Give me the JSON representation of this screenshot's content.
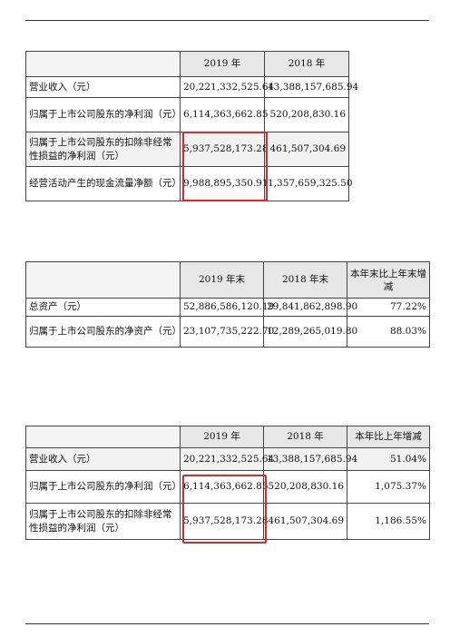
{
  "table1": {
    "headers": [
      "",
      "2019 年",
      "2018 年"
    ],
    "rows": [
      [
        "营业收入（元）",
        "20,221,332,525.64",
        "13,388,157,685.94"
      ],
      [
        "归属于上市公司股东的净利润（元）",
        "6,114,363,662.85",
        "520,208,830.16"
      ],
      [
        "归属于上市公司股东的扣除非经常性损益的净利润（元）",
        "5,937,528,173.28",
        "461,507,304.69"
      ],
      [
        "经营活动产生的现金流量净额（元）",
        "9,988,895,350.91",
        "1,357,659,325.50"
      ]
    ]
  },
  "table2": {
    "headers": [
      "",
      "2019 年末",
      "2018 年末",
      "本年末比上年末增减"
    ],
    "rows": [
      [
        "总资产（元）",
        "52,886,586,120.19",
        "29,841,862,898.90",
        "77.22%"
      ],
      [
        "归属于上市公司股东的净资产（元）",
        "23,107,735,222.70",
        "12,289,265,019.80",
        "88.03%"
      ]
    ]
  },
  "table3": {
    "headers": [
      "",
      "2019 年",
      "2018 年",
      "本年比上年增减"
    ],
    "rows": [
      [
        "营业收入（元）",
        "20,221,332,525.64",
        "13,388,157,685.94",
        "51.04%"
      ],
      [
        "归属于上市公司股东的净利润（元）",
        "6,114,363,662.85",
        "520,208,830.16",
        "1,075.37%"
      ],
      [
        "归属于上市公司股东的扣除非经常性损益的净利润（元）",
        "5,937,528,173.28",
        "461,507,304.69",
        "1,186.55%"
      ]
    ]
  },
  "colors": {
    "highlight_box": "#e0282a",
    "header_fill": "#e7e7e7"
  }
}
